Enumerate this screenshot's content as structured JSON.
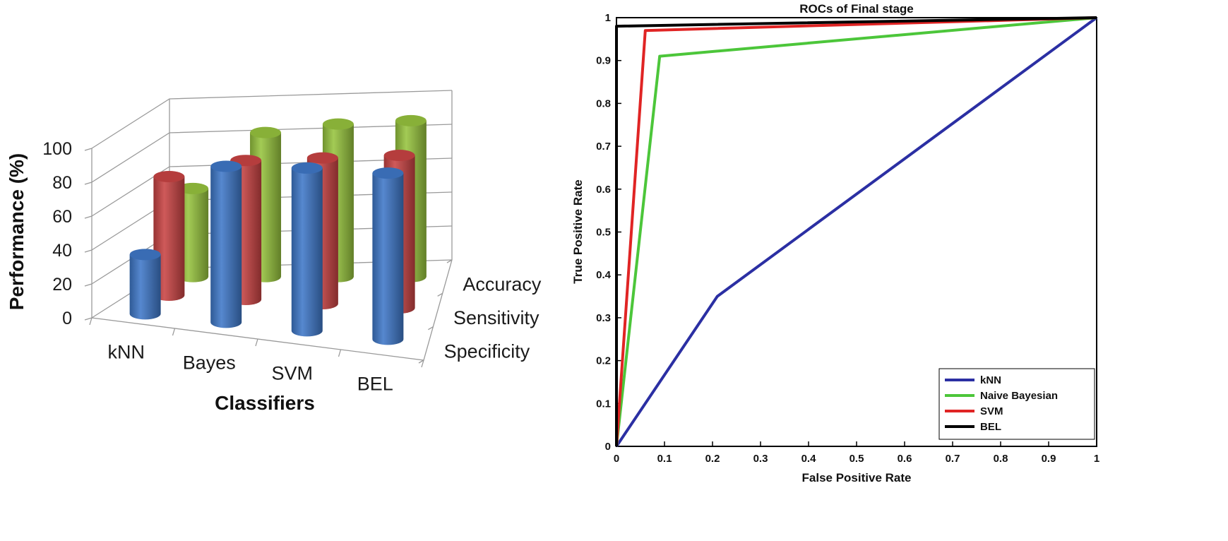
{
  "chart_data": [
    {
      "type": "bar",
      "style": "3d-cylinder",
      "title": "",
      "xlabel": "Classifiers",
      "ylabel": "Performance (%)",
      "zlabel": "",
      "ylim": [
        0,
        100
      ],
      "yticks": [
        "0",
        "20",
        "40",
        "60",
        "80",
        "100"
      ],
      "categories": [
        "kNN",
        "Bayes",
        "SVM",
        "BEL"
      ],
      "series": [
        {
          "name": "Specificity",
          "color": "#3f78c8",
          "values": [
            35,
            92,
            96,
            98
          ]
        },
        {
          "name": "Sensitivity",
          "color": "#c94444",
          "values": [
            70,
            82,
            86,
            90
          ]
        },
        {
          "name": "Accuracy",
          "color": "#97c43e",
          "values": [
            52,
            85,
            90,
            92
          ]
        }
      ]
    },
    {
      "type": "line",
      "title": "ROCs of Final stage",
      "xlabel": "False Positive Rate",
      "ylabel": "True Positive Rate",
      "xlim": [
        0,
        1
      ],
      "ylim": [
        0,
        1
      ],
      "xticks": [
        "0",
        "0.1",
        "0.2",
        "0.3",
        "0.4",
        "0.5",
        "0.6",
        "0.7",
        "0.8",
        "0.9",
        "1"
      ],
      "yticks": [
        "0",
        "0.1",
        "0.2",
        "0.3",
        "0.4",
        "0.5",
        "0.6",
        "0.7",
        "0.8",
        "0.9",
        "1"
      ],
      "legend_position": "bottom-right",
      "series": [
        {
          "name": "kNN",
          "color": "#2b2fa3",
          "x": [
            0,
            0.21,
            1
          ],
          "y": [
            0,
            0.35,
            1
          ]
        },
        {
          "name": "Naive Bayesian",
          "color": "#4cc63a",
          "x": [
            0,
            0.09,
            1
          ],
          "y": [
            0,
            0.91,
            1
          ]
        },
        {
          "name": "SVM",
          "color": "#e02424",
          "x": [
            0,
            0.06,
            1
          ],
          "y": [
            0,
            0.97,
            1
          ]
        },
        {
          "name": "BEL",
          "color": "#000000",
          "x": [
            0,
            0,
            1
          ],
          "y": [
            0,
            0.98,
            1
          ]
        }
      ]
    }
  ]
}
